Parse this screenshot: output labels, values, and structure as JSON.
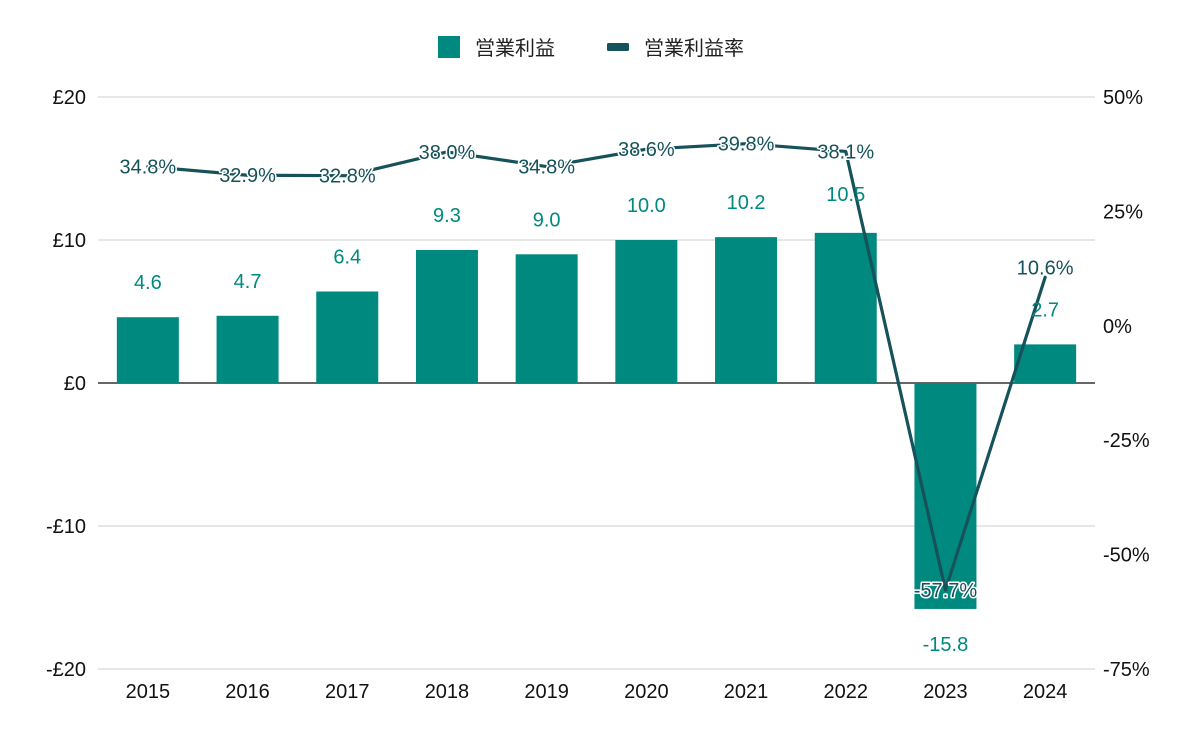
{
  "chart_data": {
    "type": "bar",
    "categories": [
      "2015",
      "2016",
      "2017",
      "2018",
      "2019",
      "2020",
      "2021",
      "2022",
      "2023",
      "2024"
    ],
    "series": [
      {
        "name": "営業利益",
        "type": "bar",
        "axis": "left",
        "color": "#00897f",
        "values": [
          4.6,
          4.7,
          6.4,
          9.3,
          9.0,
          10.0,
          10.2,
          10.5,
          -15.8,
          2.7
        ],
        "labels": [
          "4.6",
          "4.7",
          "6.4",
          "9.3",
          "9.0",
          "10.0",
          "10.2",
          "10.5",
          "-15.8",
          "2.7"
        ]
      },
      {
        "name": "営業利益率",
        "type": "line",
        "axis": "right",
        "color": "#15525a",
        "values": [
          34.8,
          32.9,
          32.8,
          38.0,
          34.8,
          38.6,
          39.8,
          38.1,
          -57.7,
          10.6
        ],
        "labels": [
          "34.8%",
          "32.9%",
          "32.8%",
          "38.0%",
          "34.8%",
          "38.6%",
          "39.8%",
          "38.1%",
          "-57.7%",
          "10.6%"
        ]
      }
    ],
    "y_left": {
      "range": [
        -20,
        20
      ],
      "ticks": [
        20,
        10,
        0,
        -10,
        -20
      ],
      "tick_labels": [
        "£20",
        "£10",
        "£0",
        "-£10",
        "-£20"
      ]
    },
    "y_right": {
      "range": [
        -75,
        50
      ],
      "ticks": [
        50,
        25,
        0,
        -25,
        -50,
        -75
      ],
      "tick_labels": [
        "50%",
        "25%",
        "0%",
        "-25%",
        "-50%",
        "-75%"
      ]
    },
    "grid": true,
    "legend_position": "top-center",
    "title": "",
    "xlabel": "",
    "ylabel": ""
  }
}
